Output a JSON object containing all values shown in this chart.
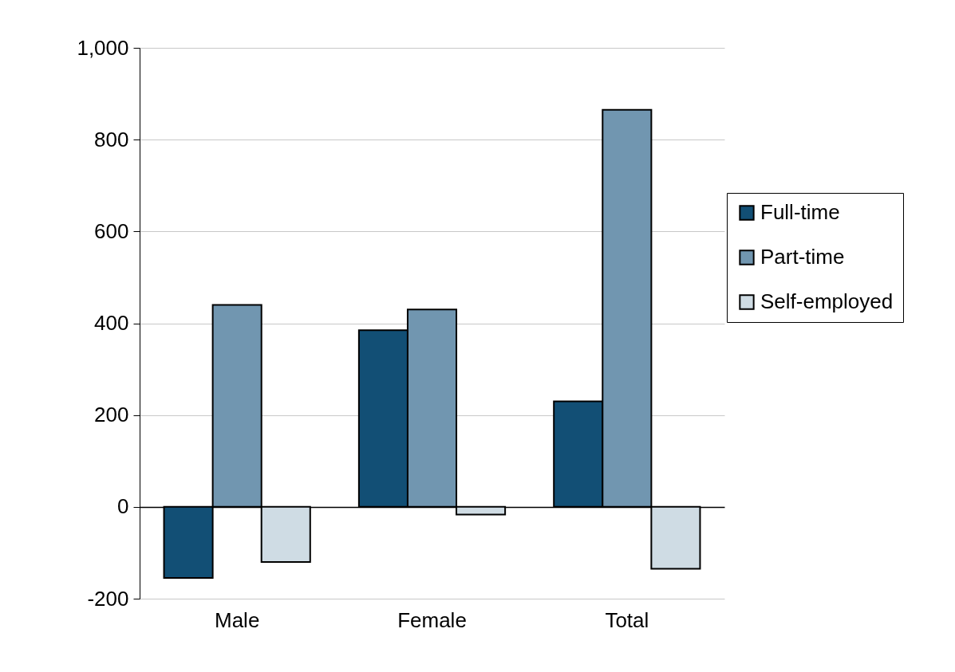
{
  "chart_data": {
    "type": "bar",
    "categories": [
      "Male",
      "Female",
      "Total"
    ],
    "series": [
      {
        "name": "Full-time",
        "color": "#124f75",
        "values": [
          -155,
          385,
          230
        ]
      },
      {
        "name": "Part-time",
        "color": "#7196b0",
        "values": [
          440,
          430,
          865
        ]
      },
      {
        "name": "Self-employed",
        "color": "#cfdce4",
        "values": [
          -120,
          -17,
          -135
        ]
      }
    ],
    "ylim": [
      -200,
      1000
    ],
    "yticks": [
      -200,
      0,
      200,
      400,
      600,
      800,
      {
        "value": 1000,
        "label": "1,000"
      }
    ],
    "grid": "y",
    "legend": "right"
  }
}
